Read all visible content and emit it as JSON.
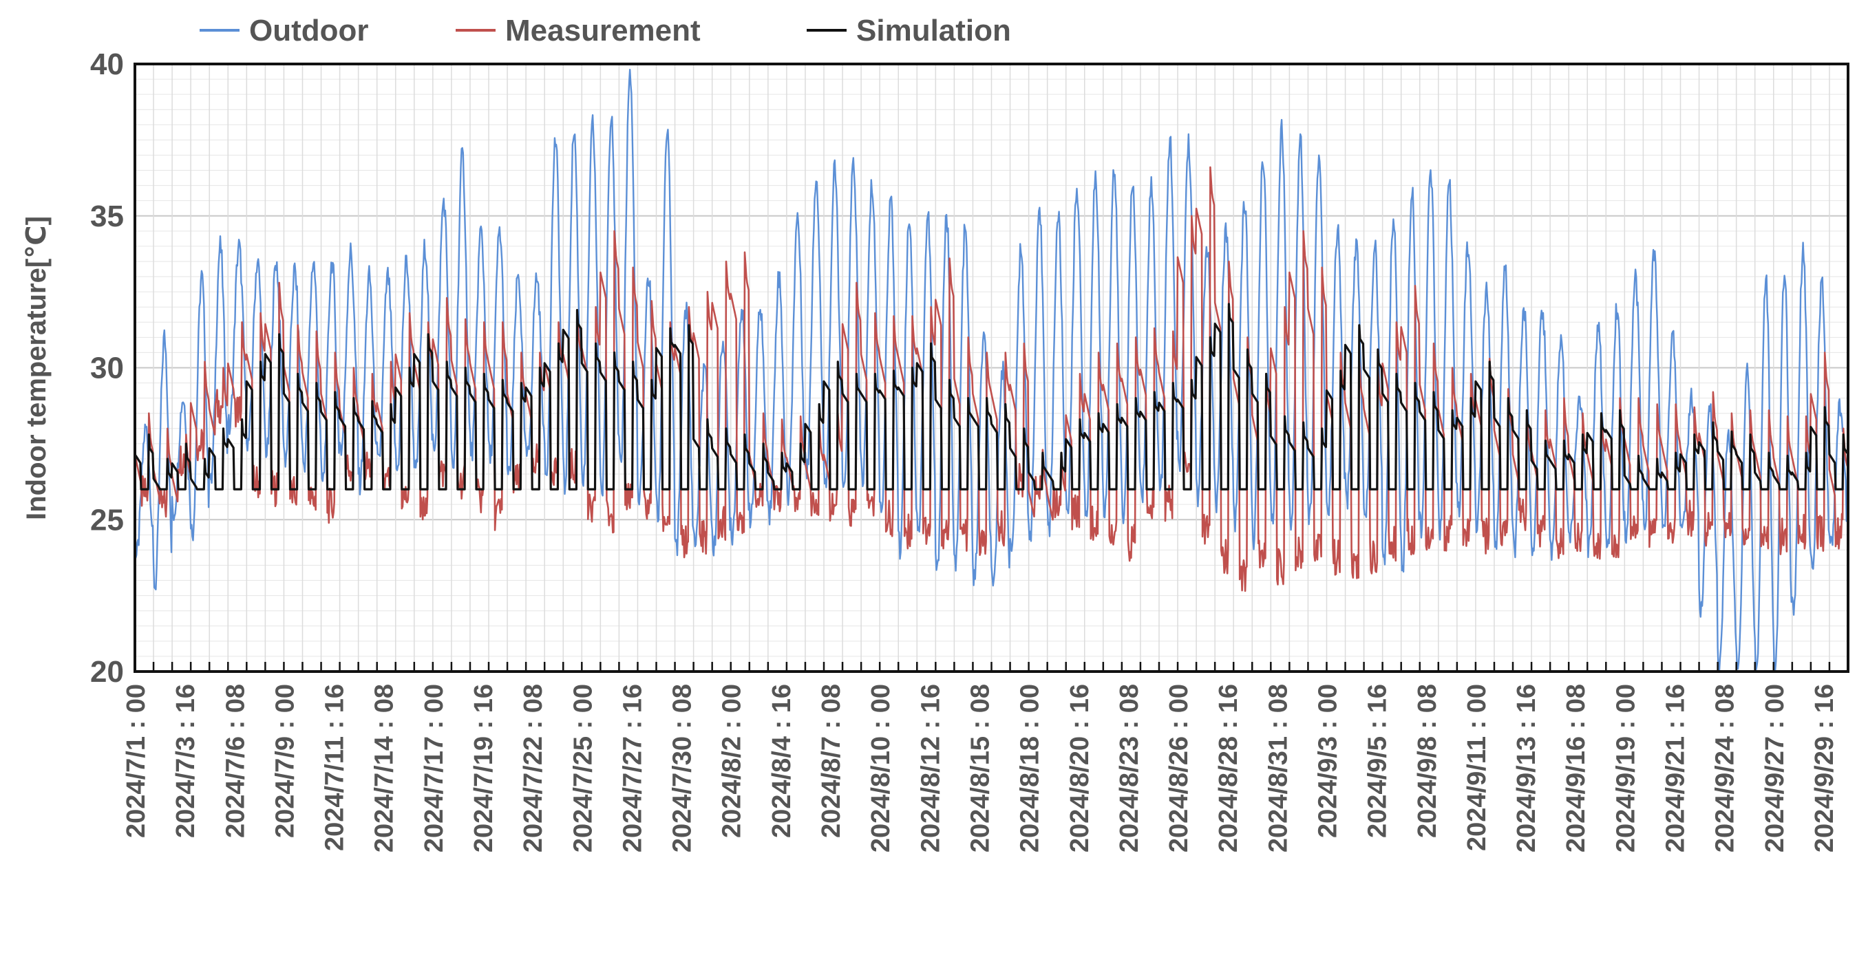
{
  "chart_data": {
    "type": "line",
    "title": "",
    "xlabel": "",
    "ylabel": "Indoor temperature[℃]",
    "ylim": [
      20,
      40
    ],
    "yticks": [
      20,
      25,
      30,
      35,
      40
    ],
    "grid": true,
    "legend_position": "top",
    "x_start": "2024/7/1 00:00",
    "x_end": "2024/9/30 24:00",
    "x_step_hours": 1,
    "xtick_labels": [
      "2024/7/1 : 00",
      "2024/7/3 : 16",
      "2024/7/6 : 08",
      "2024/7/9 : 00",
      "2024/7/11 : 16",
      "2024/7/14 : 08",
      "2024/7/17 : 00",
      "2024/7/19 : 16",
      "2024/7/22 : 08",
      "2024/7/25 : 00",
      "2024/7/27 : 16",
      "2024/7/30 : 08",
      "2024/8/2 : 00",
      "2024/8/4 : 16",
      "2024/8/7 : 08",
      "2024/8/10 : 00",
      "2024/8/12 : 16",
      "2024/8/15 : 08",
      "2024/8/18 : 00",
      "2024/8/20 : 16",
      "2024/8/23 : 08",
      "2024/8/26 : 00",
      "2024/8/28 : 16",
      "2024/8/31 : 08",
      "2024/9/3 : 00",
      "2024/9/5 : 16",
      "2024/9/8 : 08",
      "2024/9/11 : 00",
      "2024/9/13 : 16",
      "2024/9/16 : 08",
      "2024/9/19 : 00",
      "2024/9/21 : 16",
      "2024/9/24 : 08",
      "2024/9/27 : 00",
      "2024/9/29 : 16"
    ],
    "series": [
      {
        "name": "Outdoor",
        "color": "#5b8fd6",
        "daily_min": [
          23.8,
          22.8,
          25.2,
          24.5,
          26.2,
          28.0,
          27.5,
          27.2,
          27.0,
          26.8,
          26.2,
          27.3,
          26.2,
          26.8,
          26.6,
          26.5,
          27.5,
          26.5,
          27.2,
          27.0,
          26.4,
          27.0,
          26.4,
          26.0,
          26.2,
          25.8,
          26.6,
          25.5,
          25.0,
          24.0,
          24.2,
          24.0,
          24.5,
          25.0,
          25.2,
          25.8,
          26.5,
          26.2,
          25.8,
          26.3,
          25.2,
          24.0,
          24.6,
          23.2,
          23.5,
          23.0,
          22.6,
          23.8,
          24.5,
          24.6,
          25.3,
          25.0,
          25.2,
          25.0,
          25.6,
          26.0,
          26.8,
          25.8,
          25.5,
          25.0,
          24.2,
          24.8,
          24.7,
          25.0,
          25.2,
          25.6,
          25.0,
          23.5,
          23.3,
          24.8,
          24.6,
          25.2,
          24.8,
          24.2,
          24.0,
          24.0,
          23.8,
          24.6,
          24.0,
          24.0,
          24.5,
          24.8,
          24.6,
          24.5,
          22.0,
          20.0,
          20.0,
          20.0,
          20.0,
          22.0,
          23.2,
          24.2
        ],
        "daily_max": [
          28.0,
          31.0,
          29.0,
          33.0,
          34.0,
          34.0,
          33.5,
          33.5,
          33.2,
          33.5,
          33.5,
          33.8,
          33.0,
          33.0,
          33.5,
          34.0,
          35.5,
          37.0,
          34.5,
          34.5,
          33.0,
          33.0,
          37.5,
          37.8,
          38.0,
          38.5,
          39.7,
          33.0,
          37.8,
          32.0,
          30.0,
          31.0,
          32.0,
          32.0,
          33.0,
          35.0,
          36.3,
          36.5,
          36.8,
          36.0,
          35.5,
          35.0,
          35.0,
          35.0,
          34.5,
          31.0,
          30.0,
          34.0,
          35.0,
          35.0,
          36.0,
          36.3,
          36.5,
          36.0,
          36.0,
          37.5,
          37.4,
          34.0,
          34.5,
          35.5,
          37.0,
          38.0,
          37.6,
          37.0,
          34.5,
          34.0,
          34.0,
          35.0,
          36.0,
          36.4,
          36.0,
          34.0,
          32.6,
          33.2,
          32.0,
          32.0,
          31.0,
          29.0,
          31.5,
          32.0,
          33.0,
          33.8,
          31.0,
          29.0,
          28.8,
          28.0,
          30.0,
          33.0,
          33.2,
          34.0,
          32.8,
          28.8
        ]
      },
      {
        "name": "Measurement",
        "color": "#c0504d",
        "daily_min": [
          25.6,
          25.2,
          26.8,
          27.2,
          28.5,
          28.4,
          26.0,
          25.8,
          25.6,
          25.4,
          25.2,
          26.5,
          26.5,
          26.0,
          25.5,
          25.0,
          26.3,
          26.0,
          25.5,
          25.0,
          26.0,
          26.8,
          26.5,
          26.5,
          25.0,
          24.9,
          25.6,
          25.2,
          24.8,
          24.0,
          24.2,
          24.6,
          24.9,
          25.4,
          25.6,
          25.5,
          25.4,
          25.3,
          25.0,
          25.2,
          24.8,
          24.4,
          24.5,
          24.4,
          24.3,
          24.0,
          24.5,
          26.0,
          25.6,
          25.3,
          25.0,
          24.6,
          24.4,
          24.0,
          25.4,
          25.3,
          26.5,
          24.4,
          23.5,
          23.0,
          23.5,
          23.2,
          23.6,
          24.0,
          23.5,
          23.3,
          23.5,
          24.0,
          24.2,
          24.0,
          24.3,
          24.3,
          24.2,
          24.3,
          25.0,
          24.4,
          24.0,
          24.2,
          24.0,
          24.1,
          24.4,
          24.4,
          24.5,
          24.8,
          24.5,
          24.5,
          24.4,
          24.3,
          24.2,
          24.4,
          24.3,
          24.4
        ],
        "daily_max": [
          28.5,
          28.0,
          27.8,
          30.2,
          30.0,
          31.5,
          31.8,
          32.8,
          31.4,
          31.2,
          30.5,
          30.0,
          29.8,
          30.2,
          31.8,
          31.5,
          32.3,
          31.6,
          31.5,
          31.5,
          30.5,
          30.5,
          31.5,
          31.8,
          32.0,
          34.5,
          33.3,
          32.2,
          31.5,
          32.0,
          32.5,
          33.5,
          33.8,
          28.5,
          28.3,
          28.4,
          28.2,
          28.5,
          32.8,
          31.8,
          31.7,
          31.7,
          32.0,
          33.6,
          31.0,
          30.5,
          30.5,
          30.8,
          27.3,
          27.2,
          29.8,
          30.5,
          30.8,
          31.0,
          31.3,
          31.2,
          35.0,
          36.6,
          33.5,
          31.0,
          29.8,
          32.0,
          34.5,
          33.3,
          30.5,
          30.2,
          30.0,
          31.5,
          32.7,
          30.8,
          30.0,
          29.8,
          30.3,
          29.3,
          28.5,
          28.6,
          29.0,
          28.5,
          28.5,
          29.0,
          29.0,
          28.8,
          28.8,
          28.7,
          29.2,
          28.5,
          28.6,
          28.6,
          28.4,
          28.4,
          30.5,
          28.0
        ]
      },
      {
        "name": "Simulation",
        "color": "#111111",
        "daily_min": [
          26.0,
          26.0,
          26.0,
          26.0,
          26.0,
          26.0,
          26.0,
          26.0,
          26.0,
          26.0,
          26.0,
          26.0,
          26.0,
          26.0,
          26.0,
          26.0,
          26.0,
          26.0,
          26.0,
          26.0,
          26.0,
          26.0,
          26.0,
          26.0,
          26.0,
          26.0,
          26.0,
          26.0,
          26.0,
          26.0,
          26.0,
          26.0,
          26.0,
          26.0,
          26.0,
          26.0,
          26.0,
          26.0,
          26.0,
          26.0,
          26.0,
          26.0,
          26.0,
          26.0,
          26.0,
          26.0,
          26.0,
          26.0,
          26.0,
          26.0,
          26.0,
          26.0,
          26.0,
          26.0,
          26.0,
          26.0,
          26.0,
          26.0,
          26.0,
          26.0,
          26.0,
          26.0,
          26.0,
          26.0,
          26.0,
          26.0,
          26.0,
          26.0,
          26.0,
          26.0,
          26.0,
          26.0,
          26.0,
          26.0,
          26.0,
          26.0,
          26.0,
          26.0,
          26.0,
          26.0,
          26.0,
          26.0,
          26.0,
          26.0,
          26.0,
          26.0,
          26.0,
          26.0,
          26.0,
          26.0,
          26.0,
          26.0
        ],
        "daily_max": [
          27.8,
          27.0,
          27.5,
          27.0,
          28.0,
          28.3,
          30.2,
          31.1,
          29.8,
          29.5,
          29.2,
          29.0,
          28.9,
          28.8,
          30.0,
          31.1,
          30.2,
          30.0,
          29.8,
          29.6,
          29.5,
          30.0,
          30.8,
          31.9,
          30.8,
          30.5,
          30.2,
          29.6,
          31.3,
          31.4,
          28.3,
          28.0,
          27.8,
          27.5,
          27.2,
          27.5,
          28.8,
          30.2,
          29.8,
          29.8,
          29.9,
          30.0,
          30.8,
          29.6,
          29.0,
          29.0,
          28.8,
          28.0,
          27.2,
          27.2,
          28.3,
          28.5,
          28.8,
          29.0,
          29.2,
          29.5,
          29.6,
          31.0,
          32.1,
          30.6,
          29.8,
          28.4,
          28.2,
          28.0,
          29.9,
          31.4,
          30.6,
          29.8,
          29.5,
          29.2,
          28.6,
          29.0,
          30.2,
          29.0,
          28.6,
          27.6,
          27.6,
          27.8,
          28.5,
          28.6,
          27.1,
          27.0,
          27.2,
          27.8,
          28.2,
          27.9,
          27.8,
          27.2,
          27.1,
          27.2,
          28.7,
          27.8
        ]
      }
    ]
  }
}
